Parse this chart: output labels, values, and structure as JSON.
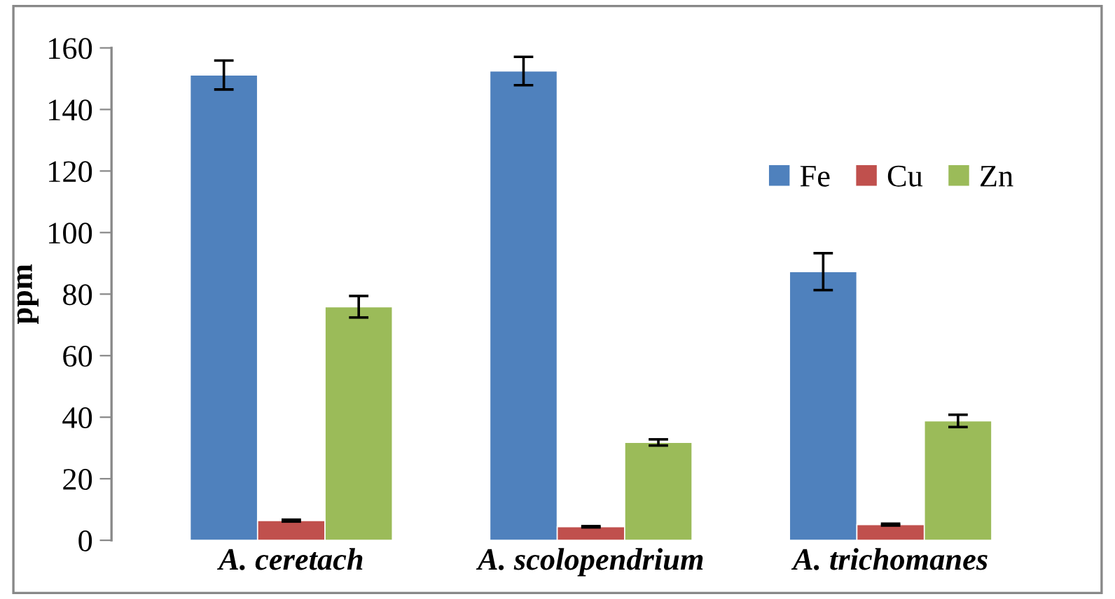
{
  "chart_data": {
    "type": "bar",
    "ylabel": "ppm",
    "categories": [
      "A. ceretach",
      "A. scolopendrium",
      "A. trichomanes"
    ],
    "series": [
      {
        "name": "Fe",
        "color": "#4f81bd",
        "values": [
          151.2,
          152.5,
          87.3
        ],
        "errors": [
          4.7,
          4.6,
          6
        ]
      },
      {
        "name": "Cu",
        "color": "#c0504d",
        "values": [
          6.4,
          4.4,
          5.1
        ],
        "errors": [
          0.3,
          0.2,
          0.3
        ]
      },
      {
        "name": "Zn",
        "color": "#9bbb59",
        "values": [
          75.9,
          31.8,
          38.8
        ],
        "errors": [
          3.5,
          1.0,
          2
        ]
      }
    ],
    "ylim": [
      0,
      160
    ],
    "yticks": [
      0,
      20,
      40,
      60,
      80,
      100,
      120,
      140,
      160
    ],
    "grid": false,
    "legend": "top right"
  }
}
